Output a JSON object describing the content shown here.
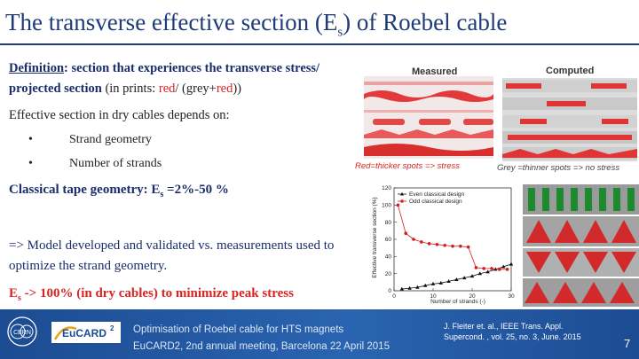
{
  "slide": {
    "title_main": "The transverse effective section (E",
    "title_sub": "s",
    "title_end": ") of  Roebel cable",
    "definition_label": "Definition",
    "definition_colon": ": section that experiences the transverse stress/ projected section",
    "definition_paren_open": " (in prints: ",
    "definition_red": "red",
    "definition_slash": "/ (grey+",
    "definition_red2": "red",
    "definition_paren_close": "))",
    "effective_text": "Effective section in dry cables depends on:",
    "bullets": [
      {
        "dot": "•",
        "text": "Strand geometry"
      },
      {
        "dot": "•",
        "text": "Number of strands"
      }
    ],
    "classical_main": "Classical tape geometry: E",
    "classical_sub": "s",
    "classical_end": " =2%-50 %",
    "model_text": "=> Model developed and validated vs. measurements used to optimize the strand geometry.",
    "es_main": "E",
    "es_sub": "s",
    "es_end": " -> 100% (in dry cables) to minimize  peak stress"
  },
  "figures": {
    "measured_label": "Measured",
    "computed_label": "Computed",
    "caption_red": "Red=thicker spots => stress",
    "caption_grey": "Grey =thinner spots => no stress"
  },
  "chart_data": {
    "type": "line",
    "title": "",
    "xlabel": "Number of strands (-)",
    "ylabel": "Effective transverse section (%)",
    "xlim": [
      0,
      30
    ],
    "ylim": [
      0,
      120
    ],
    "xticks": [
      0,
      10,
      20,
      30
    ],
    "yticks": [
      0,
      20,
      40,
      60,
      80,
      100,
      120
    ],
    "legend_position": "top-left",
    "series": [
      {
        "name": "Even classical design",
        "color": "#111111",
        "marker": "triangle",
        "x": [
          2,
          4,
          6,
          8,
          10,
          12,
          14,
          16,
          18,
          20,
          22,
          24,
          26,
          28,
          30
        ],
        "y": [
          2,
          3,
          4,
          6,
          8,
          9,
          11,
          13,
          15,
          17,
          20,
          22,
          25,
          28,
          31
        ]
      },
      {
        "name": "Odd classical design",
        "color": "#d21f1f",
        "marker": "circle",
        "x": [
          1,
          3,
          5,
          7,
          9,
          11,
          13,
          15,
          17,
          19,
          21,
          23,
          25,
          27,
          29
        ],
        "y": [
          100,
          67,
          60,
          57,
          55,
          54,
          53,
          52,
          52,
          51,
          27,
          26,
          26,
          25,
          25
        ]
      }
    ]
  },
  "footer": {
    "line1": "Optimisation of Roebel cable for HTS magnets",
    "line2": "EuCARD2, 2nd annual meeting, Barcelona  22 April  2015",
    "ref_line1": "J. Fleiter et. al., IEEE Trans. Appl.",
    "ref_line2": "Supercond. , vol. 25, no. 3, June. 2015",
    "page_number": "7",
    "logo_cern_text": "CERN",
    "logo_eucard_text": "EuCARD",
    "logo_eucard_sup": "2"
  },
  "colors": {
    "title_blue": "#1f3b78",
    "accent_red": "#d22222",
    "footer_blue": "#1c4c92"
  }
}
